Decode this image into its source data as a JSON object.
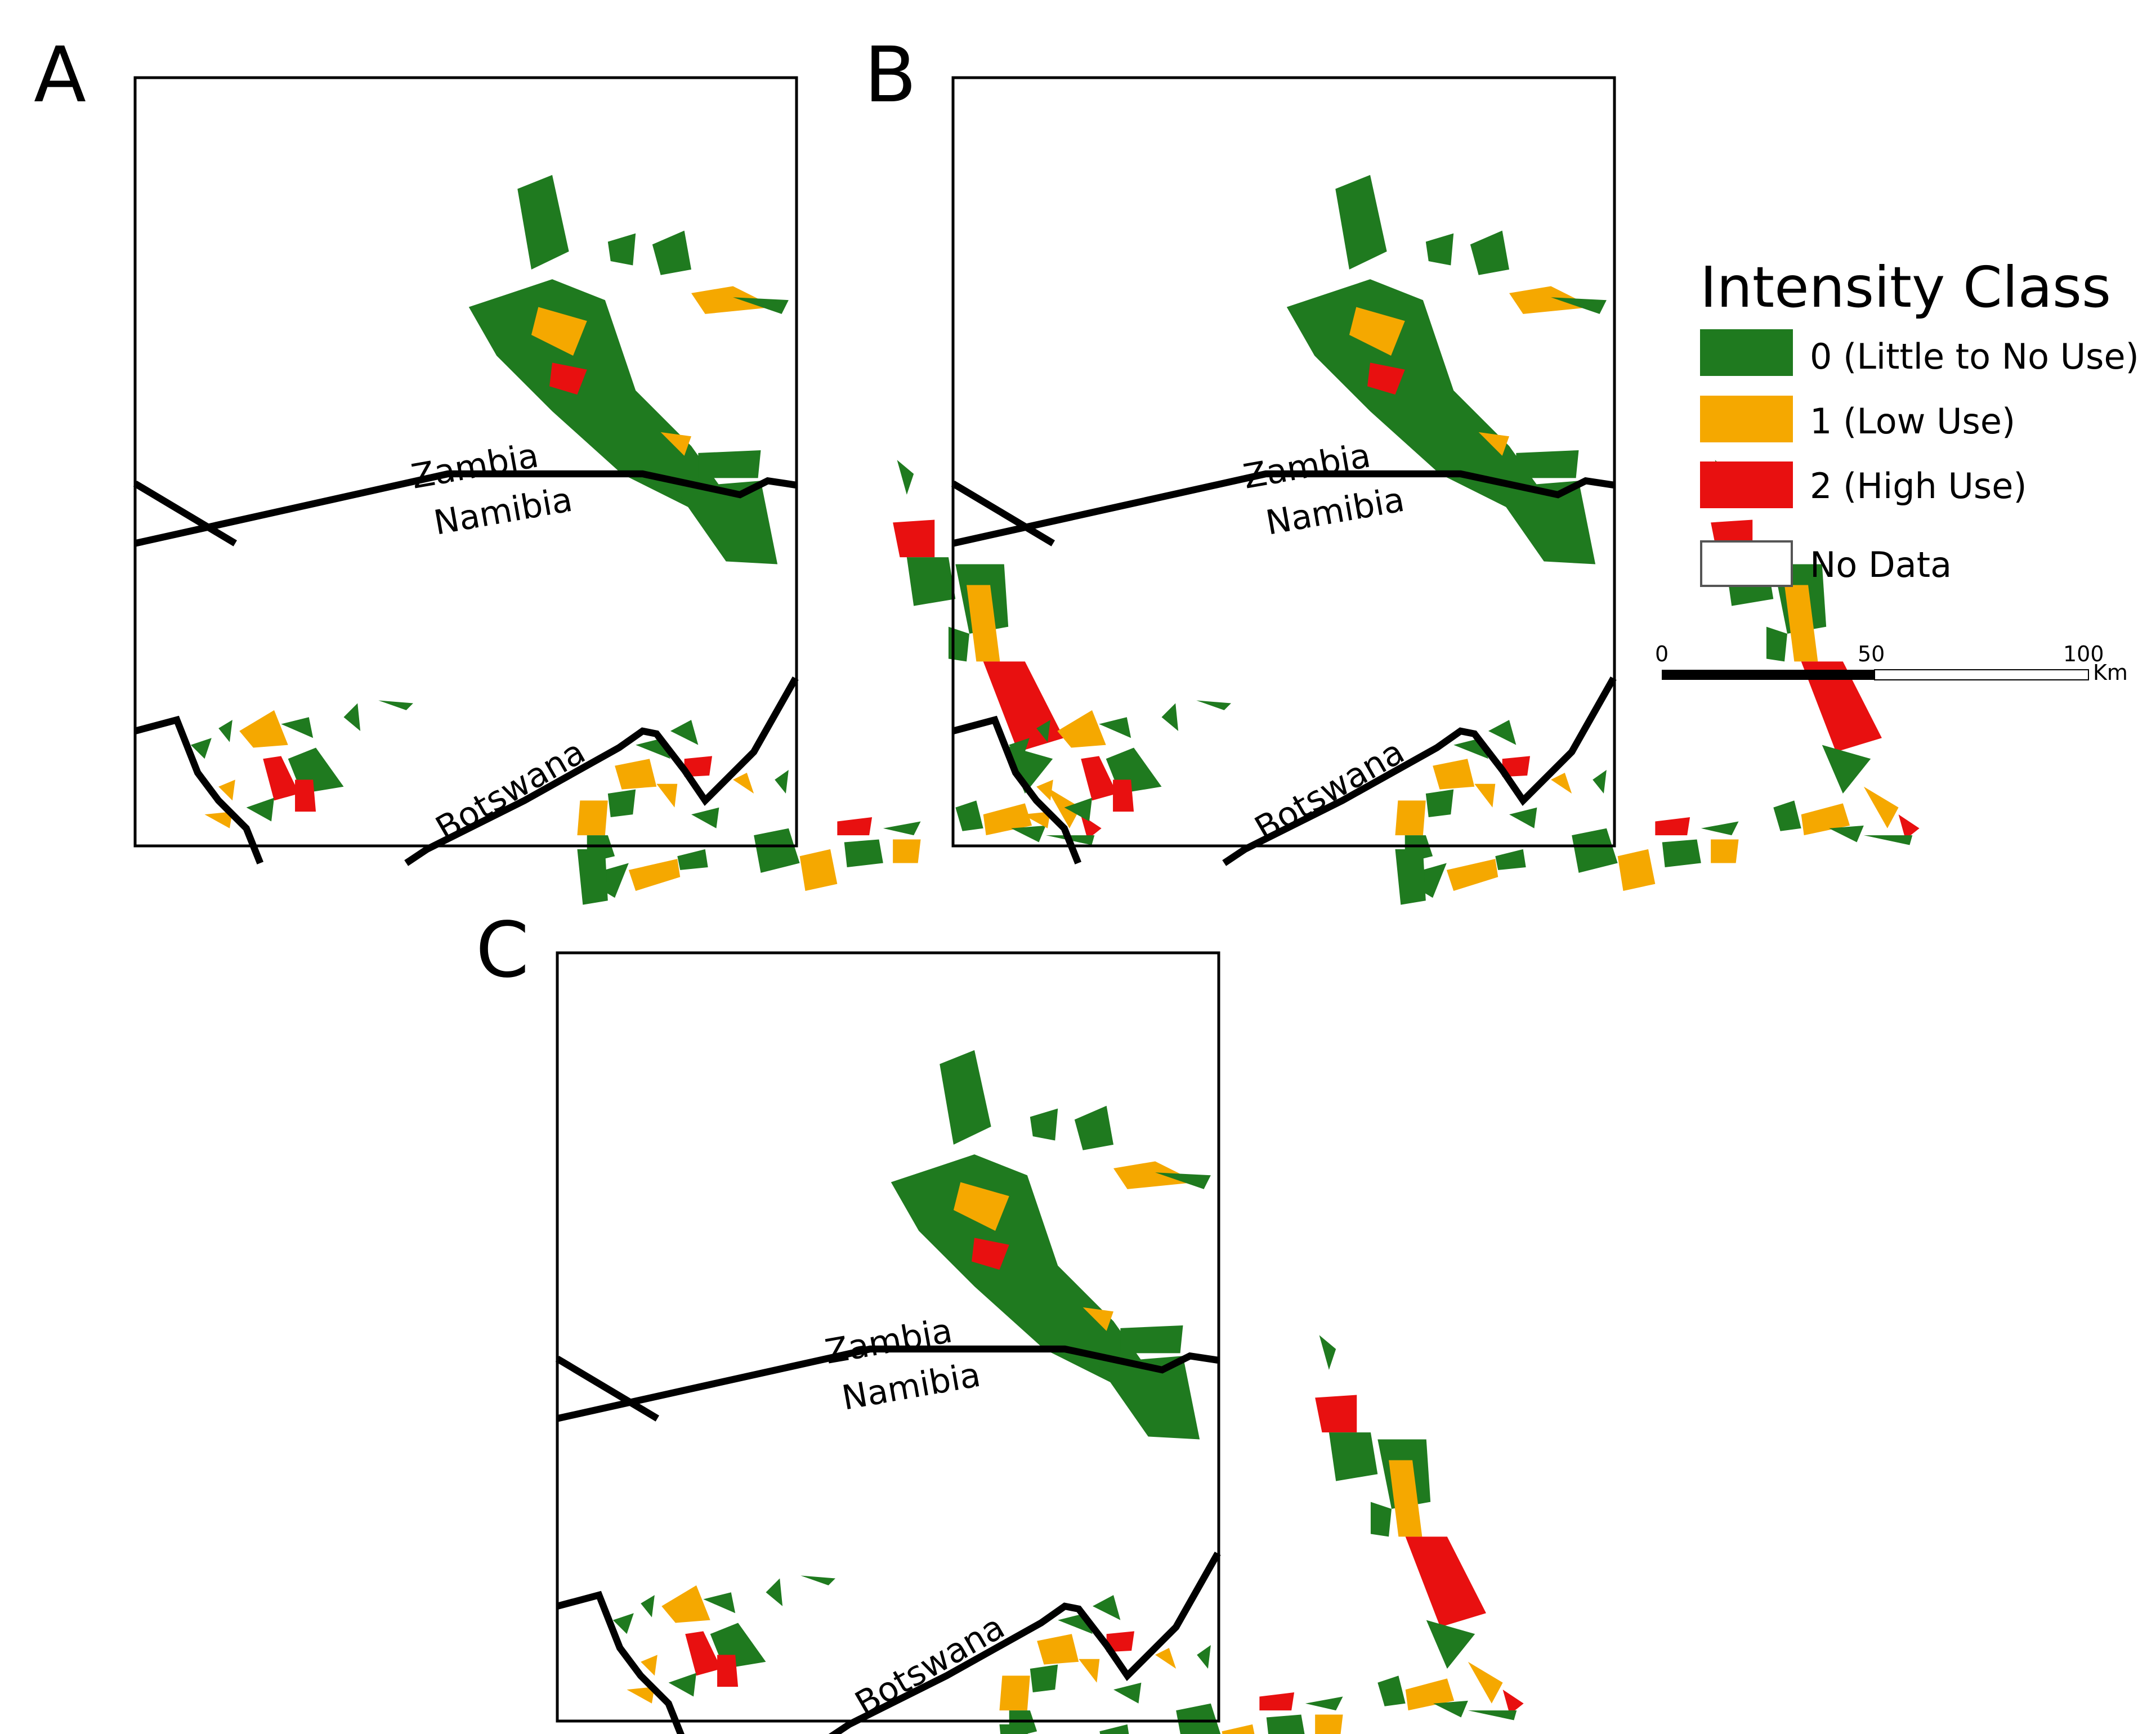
{
  "colors": {
    "class0": "#1f7a1f",
    "class1": "#f5a800",
    "class2": "#e81010",
    "nodata": "#ffffff",
    "border": "#000000"
  },
  "panels": [
    {
      "label": "A",
      "zambia": "Zambia",
      "namibia": "Namibia",
      "botswana": "Botswana"
    },
    {
      "label": "B",
      "zambia": "Zambia",
      "namibia": "Namibia",
      "botswana": "Botswana"
    },
    {
      "label": "C",
      "zambia": "Zambia",
      "namibia": "Namibia",
      "botswana": "Botswana"
    }
  ],
  "legend": {
    "title": "Intensity Class",
    "items": [
      {
        "label": "0 (Little to No Use)"
      },
      {
        "label": "1 (Low Use)"
      },
      {
        "label": "2 (High Use)"
      },
      {
        "label": "No Data"
      }
    ]
  },
  "scalebar": {
    "ticks": [
      "0",
      "50",
      "100"
    ],
    "unit": "Km"
  }
}
